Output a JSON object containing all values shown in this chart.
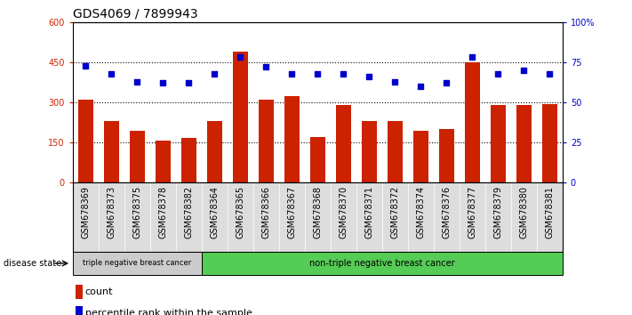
{
  "title": "GDS4069 / 7899943",
  "samples": [
    "GSM678369",
    "GSM678373",
    "GSM678375",
    "GSM678378",
    "GSM678382",
    "GSM678364",
    "GSM678365",
    "GSM678366",
    "GSM678367",
    "GSM678368",
    "GSM678370",
    "GSM678371",
    "GSM678372",
    "GSM678374",
    "GSM678376",
    "GSM678377",
    "GSM678379",
    "GSM678380",
    "GSM678381"
  ],
  "counts": [
    310,
    230,
    195,
    158,
    168,
    230,
    490,
    310,
    325,
    170,
    290,
    230,
    230,
    195,
    200,
    450,
    290,
    290,
    295
  ],
  "percentiles": [
    73,
    68,
    63,
    62,
    62,
    68,
    78,
    72,
    68,
    68,
    68,
    66,
    63,
    60,
    62,
    78,
    68,
    70,
    68
  ],
  "group1_count": 5,
  "group1_label": "triple negative breast cancer",
  "group2_label": "non-triple negative breast cancer",
  "group1_color": "#cccccc",
  "group2_color": "#55cc55",
  "bar_color": "#cc2200",
  "dot_color": "#0000cc",
  "ylim_left": [
    0,
    600
  ],
  "ylim_right": [
    0,
    100
  ],
  "yticks_left": [
    0,
    150,
    300,
    450,
    600
  ],
  "yticks_right": [
    0,
    25,
    50,
    75,
    100
  ],
  "grid_vals": [
    150,
    300,
    450
  ],
  "title_fontsize": 10,
  "tick_fontsize": 7,
  "label_fontsize": 8,
  "legend_fontsize": 8,
  "disease_state_label": "disease state",
  "left_ylabel_color": "#cc2200",
  "right_ylabel_color": "#0000cc",
  "xtick_bg_color": "#dddddd"
}
